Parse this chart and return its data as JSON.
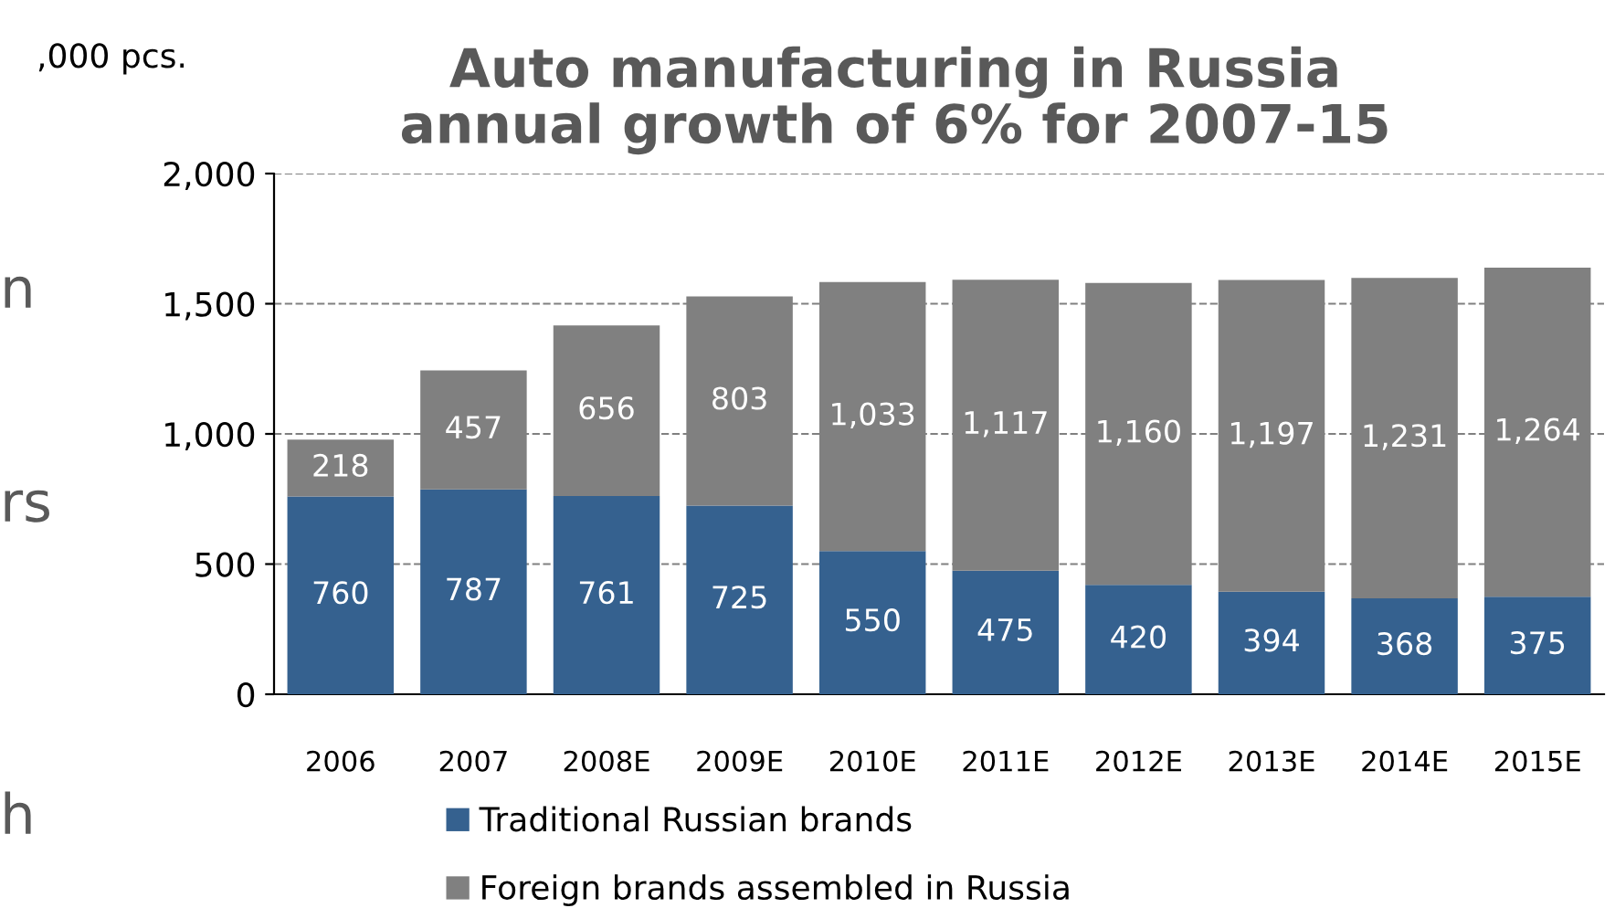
{
  "chart_data": {
    "type": "bar",
    "title": "Auto manufacturing in Russia\nannual growth of 6% for 2007-15",
    "ylabel": ",000 pcs.",
    "categories": [
      "2006",
      "2007",
      "2008E",
      "2009E",
      "2010E",
      "2011E",
      "2012E",
      "2013E",
      "2014E",
      "2015E"
    ],
    "series": [
      {
        "name": "Traditional Russian brands",
        "color": "#35618f",
        "values": [
          760,
          787,
          761,
          725,
          550,
          475,
          420,
          394,
          368,
          375
        ],
        "value_labels": [
          "760",
          "787",
          "761",
          "725",
          "550",
          "475",
          "420",
          "394",
          "368",
          "375"
        ]
      },
      {
        "name": "Foreign brands assembled in Russia",
        "color": "#808080",
        "values": [
          218,
          457,
          656,
          803,
          1033,
          1117,
          1160,
          1197,
          1231,
          1264
        ],
        "value_labels": [
          "218",
          "457",
          "656",
          "803",
          "1,033",
          "1,117",
          "1,160",
          "1,197",
          "1,231",
          "1,264"
        ]
      }
    ],
    "stacked": true,
    "ylim": [
      0,
      2000
    ],
    "yticks": [
      {
        "value": 0,
        "label": "0"
      },
      {
        "value": 500,
        "label": "500"
      },
      {
        "value": 1000,
        "label": "1,000"
      },
      {
        "value": 1500,
        "label": "1,500"
      },
      {
        "value": 2000,
        "label": "2,000"
      }
    ],
    "grid": "y",
    "legend": "bottom",
    "annotations": [
      "n",
      "rs",
      "h"
    ]
  }
}
